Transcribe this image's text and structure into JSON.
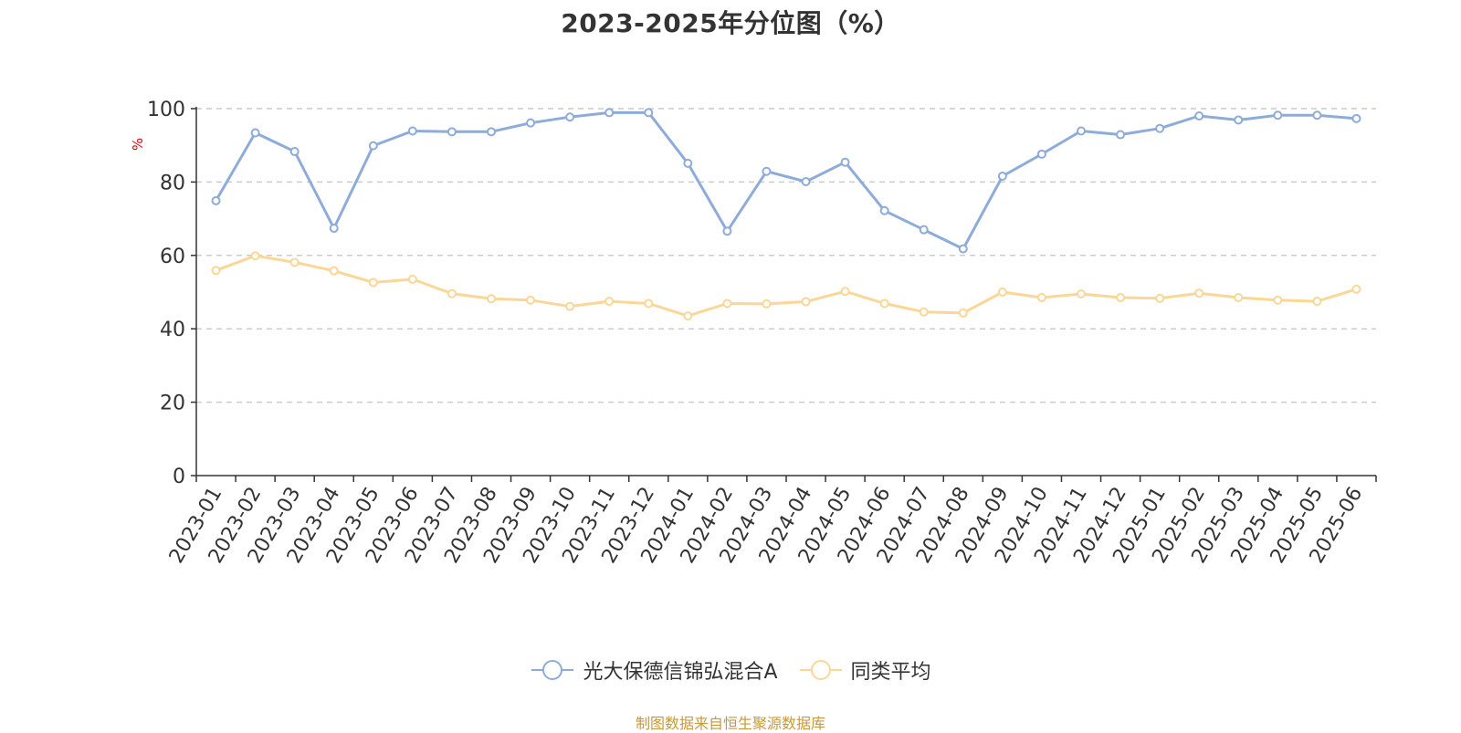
{
  "chart_data": {
    "type": "line",
    "title": "2023-2025年分位图（%）",
    "ylabel": "%",
    "xlabel": "",
    "ylim": [
      0,
      100
    ],
    "yticks": [
      0,
      20,
      40,
      60,
      80,
      100
    ],
    "grid": true,
    "legend_position": "bottom",
    "categories": [
      "2023-01",
      "2023-02",
      "2023-03",
      "2023-04",
      "2023-05",
      "2023-06",
      "2023-07",
      "2023-08",
      "2023-09",
      "2023-10",
      "2023-11",
      "2023-12",
      "2024-01",
      "2024-02",
      "2024-03",
      "2024-04",
      "2024-05",
      "2024-06",
      "2024-07",
      "2024-08",
      "2024-09",
      "2024-10",
      "2024-11",
      "2024-12",
      "2025-01",
      "2025-02",
      "2025-03",
      "2025-04",
      "2025-05",
      "2025-06"
    ],
    "series": [
      {
        "name": "光大保德信锦弘混合A",
        "color": "#8eacd9",
        "values": [
          74.9,
          93.4,
          88.3,
          67.4,
          89.9,
          93.9,
          93.7,
          93.7,
          96.1,
          97.7,
          98.9,
          98.9,
          85.1,
          66.6,
          82.9,
          80.1,
          85.4,
          72.2,
          67.0,
          61.8,
          81.6,
          87.6,
          93.9,
          92.9,
          94.6,
          98.0,
          96.9,
          98.2,
          98.2,
          97.3
        ]
      },
      {
        "name": "同类平均",
        "color": "#fad797",
        "values": [
          55.9,
          59.9,
          58.1,
          55.8,
          52.6,
          53.5,
          49.6,
          48.2,
          47.8,
          46.1,
          47.5,
          46.9,
          43.5,
          46.9,
          46.8,
          47.4,
          50.2,
          46.9,
          44.6,
          44.3,
          50.0,
          48.5,
          49.5,
          48.5,
          48.3,
          49.7,
          48.5,
          47.8,
          47.5,
          50.8
        ]
      }
    ]
  },
  "source_note": "制图数据来自恒生聚源数据库"
}
